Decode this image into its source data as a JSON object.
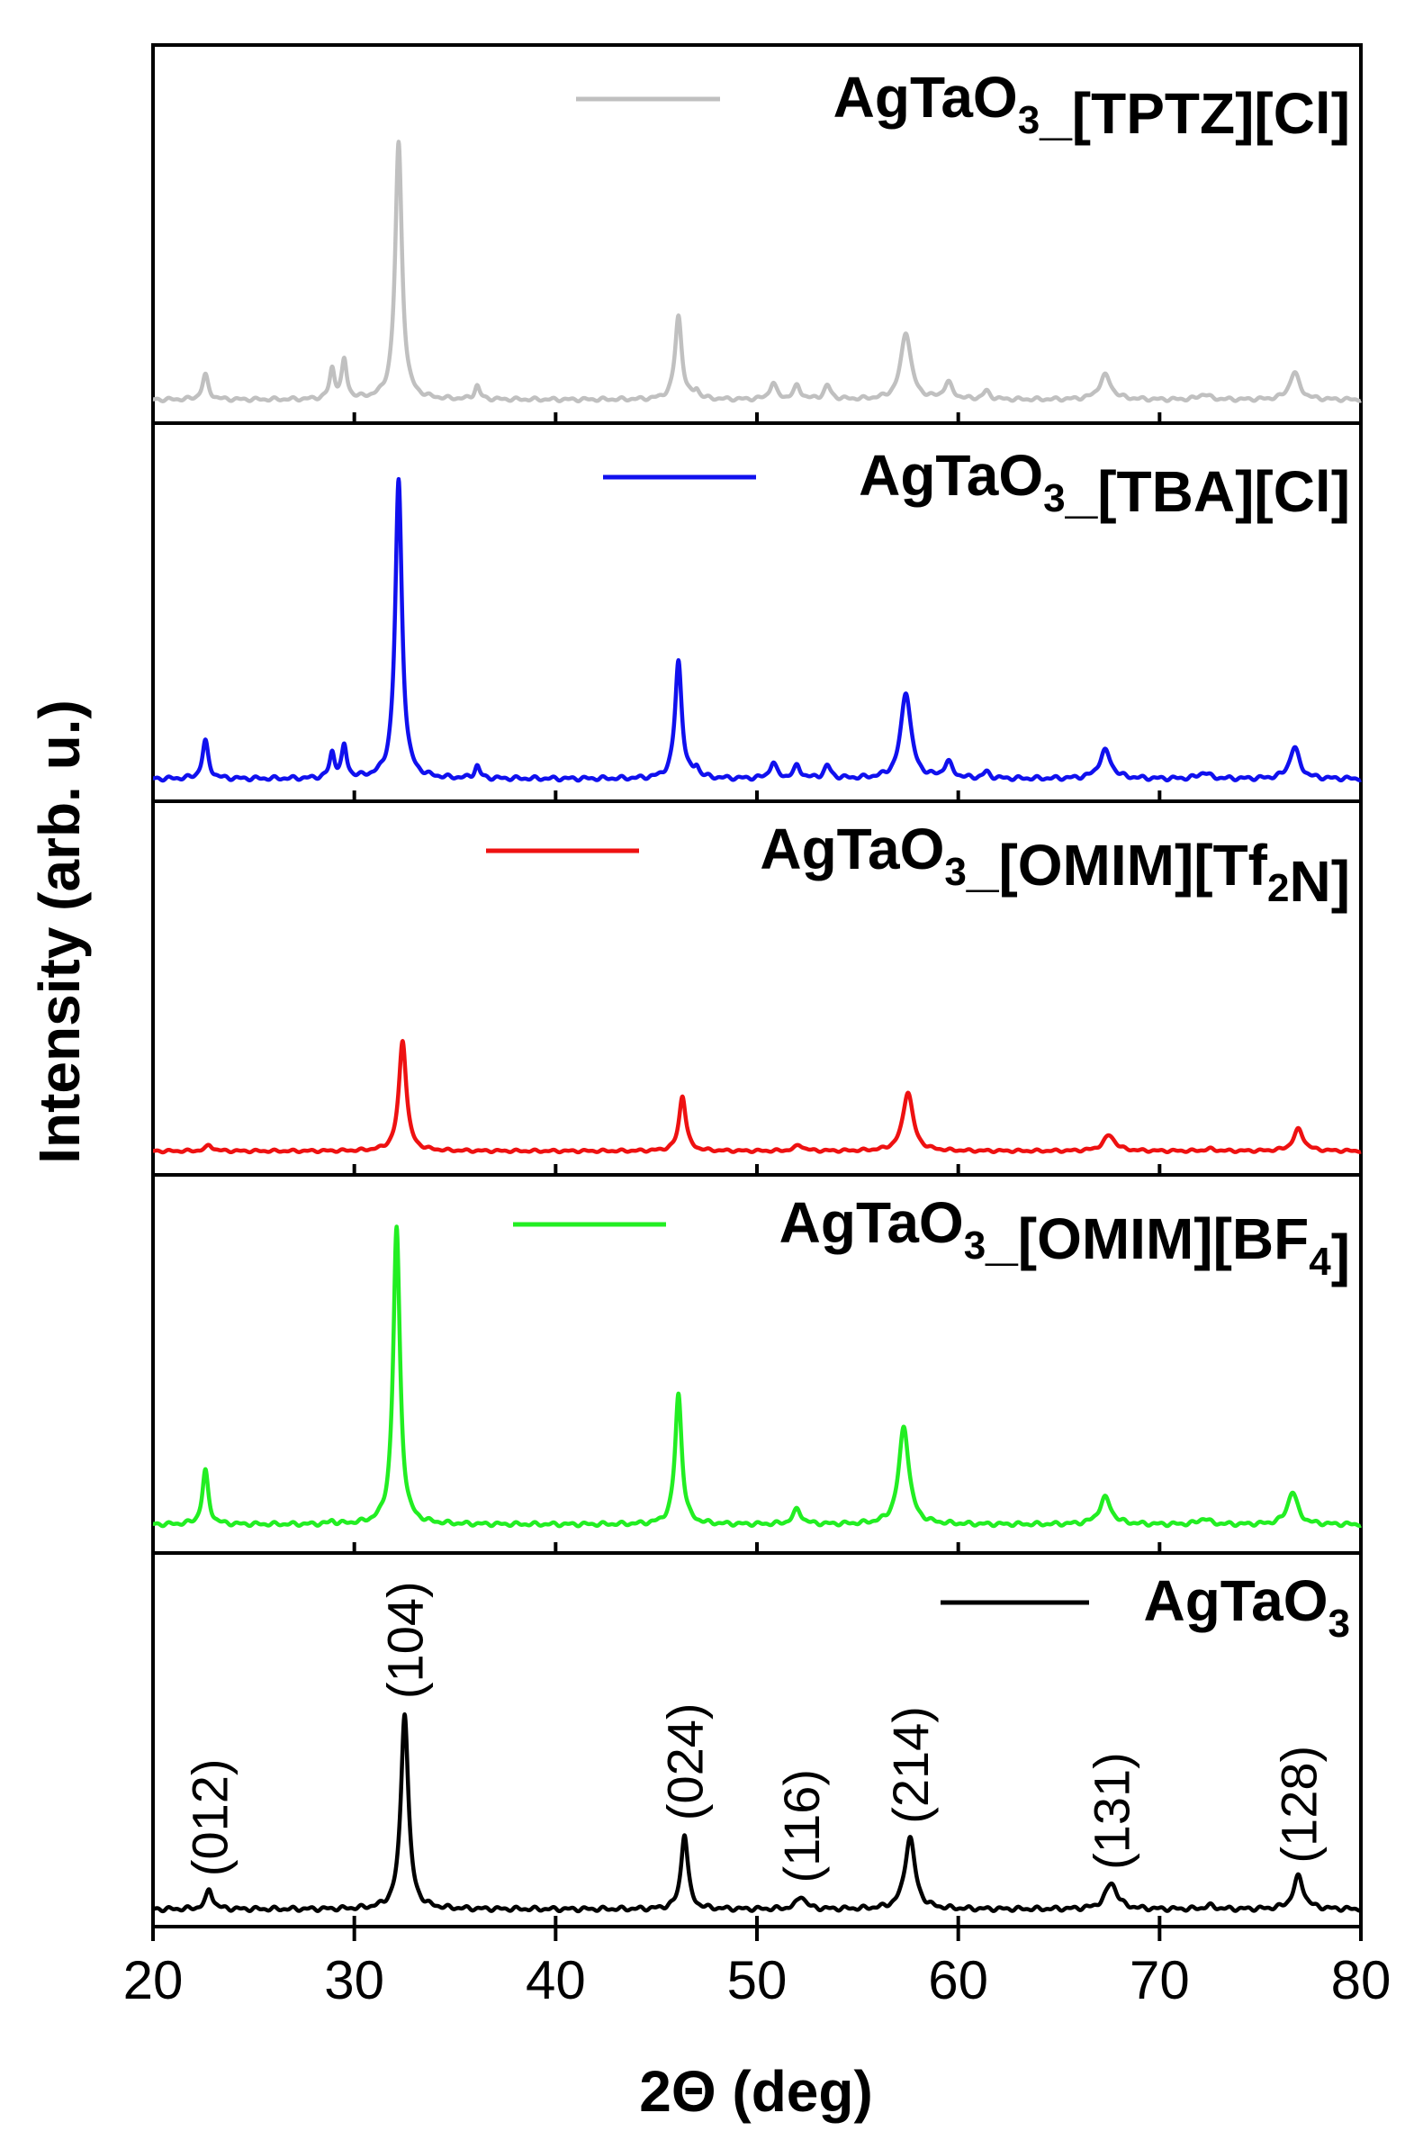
{
  "chart_data": {
    "type": "line",
    "xlabel": "2Θ (deg)",
    "ylabel": "Intensity (arb. u.)",
    "xlim": [
      20,
      80
    ],
    "xticks": [
      20,
      30,
      40,
      50,
      60,
      70,
      80
    ],
    "xtick_labels": [
      "20",
      "30",
      "40",
      "50",
      "60",
      "70",
      "80"
    ],
    "panels": [
      {
        "id": "tptz",
        "legend": {
          "base": "AgTaO",
          "sub1": "3",
          "mid": "_[TPTZ][Cl]",
          "sub2": "",
          "end": ""
        },
        "color": "#c0c0c0",
        "baseline": 0.02,
        "peaks": [
          {
            "x": 22.6,
            "h": 0.09,
            "w": 0.18
          },
          {
            "x": 28.9,
            "h": 0.11,
            "w": 0.15
          },
          {
            "x": 29.5,
            "h": 0.14,
            "w": 0.15
          },
          {
            "x": 32.2,
            "h": 0.95,
            "w": 0.2
          },
          {
            "x": 36.1,
            "h": 0.05,
            "w": 0.15
          },
          {
            "x": 46.1,
            "h": 0.31,
            "w": 0.2
          },
          {
            "x": 47.0,
            "h": 0.03,
            "w": 0.15
          },
          {
            "x": 50.8,
            "h": 0.06,
            "w": 0.2
          },
          {
            "x": 52.0,
            "h": 0.05,
            "w": 0.2
          },
          {
            "x": 53.5,
            "h": 0.05,
            "w": 0.2
          },
          {
            "x": 57.4,
            "h": 0.25,
            "w": 0.3
          },
          {
            "x": 59.5,
            "h": 0.06,
            "w": 0.25
          },
          {
            "x": 61.4,
            "h": 0.03,
            "w": 0.2
          },
          {
            "x": 67.3,
            "h": 0.09,
            "w": 0.35
          },
          {
            "x": 72.2,
            "h": 0.02,
            "w": 0.3
          },
          {
            "x": 76.7,
            "h": 0.1,
            "w": 0.3
          }
        ]
      },
      {
        "id": "tba",
        "legend": {
          "base": "AgTaO",
          "sub1": "3",
          "mid": "_[TBA][Cl]",
          "sub2": "",
          "end": ""
        },
        "color": "#1010ee",
        "baseline": 0.02,
        "peaks": [
          {
            "x": 22.6,
            "h": 0.12,
            "w": 0.18
          },
          {
            "x": 28.9,
            "h": 0.08,
            "w": 0.15
          },
          {
            "x": 29.5,
            "h": 0.1,
            "w": 0.15
          },
          {
            "x": 32.2,
            "h": 0.96,
            "w": 0.2
          },
          {
            "x": 36.1,
            "h": 0.04,
            "w": 0.15
          },
          {
            "x": 46.1,
            "h": 0.38,
            "w": 0.2
          },
          {
            "x": 47.0,
            "h": 0.03,
            "w": 0.15
          },
          {
            "x": 50.8,
            "h": 0.05,
            "w": 0.2
          },
          {
            "x": 52.0,
            "h": 0.04,
            "w": 0.2
          },
          {
            "x": 53.5,
            "h": 0.04,
            "w": 0.2
          },
          {
            "x": 57.4,
            "h": 0.28,
            "w": 0.3
          },
          {
            "x": 59.5,
            "h": 0.05,
            "w": 0.25
          },
          {
            "x": 61.4,
            "h": 0.02,
            "w": 0.2
          },
          {
            "x": 67.3,
            "h": 0.09,
            "w": 0.35
          },
          {
            "x": 72.2,
            "h": 0.02,
            "w": 0.3
          },
          {
            "x": 76.7,
            "h": 0.1,
            "w": 0.3
          }
        ]
      },
      {
        "id": "tf2n",
        "legend": {
          "base": "AgTaO",
          "sub1": "3",
          "mid": "_[OMIM][Tf",
          "sub2": "2",
          "end": "N]"
        },
        "color": "#ee1111",
        "baseline": 0.02,
        "peaks": [
          {
            "x": 22.8,
            "h": 0.03,
            "w": 0.2
          },
          {
            "x": 32.4,
            "h": 0.56,
            "w": 0.22
          },
          {
            "x": 46.3,
            "h": 0.28,
            "w": 0.2
          },
          {
            "x": 52.1,
            "h": 0.03,
            "w": 0.25
          },
          {
            "x": 57.5,
            "h": 0.3,
            "w": 0.3
          },
          {
            "x": 67.5,
            "h": 0.08,
            "w": 0.35
          },
          {
            "x": 72.5,
            "h": 0.01,
            "w": 0.3
          },
          {
            "x": 76.9,
            "h": 0.11,
            "w": 0.3
          }
        ]
      },
      {
        "id": "bf4",
        "legend": {
          "base": "AgTaO",
          "sub1": "3",
          "mid": "_[OMIM][BF",
          "sub2": "4",
          "end": "]"
        },
        "color": "#22ee22",
        "baseline": 0.02,
        "peaks": [
          {
            "x": 22.6,
            "h": 0.18,
            "w": 0.18
          },
          {
            "x": 28.9,
            "h": 0.01,
            "w": 0.15
          },
          {
            "x": 32.1,
            "h": 1.0,
            "w": 0.2
          },
          {
            "x": 46.1,
            "h": 0.44,
            "w": 0.2
          },
          {
            "x": 52.0,
            "h": 0.05,
            "w": 0.25
          },
          {
            "x": 57.3,
            "h": 0.33,
            "w": 0.3
          },
          {
            "x": 67.3,
            "h": 0.09,
            "w": 0.35
          },
          {
            "x": 72.2,
            "h": 0.02,
            "w": 0.3
          },
          {
            "x": 76.6,
            "h": 0.11,
            "w": 0.3
          }
        ]
      },
      {
        "id": "agtao3",
        "legend": {
          "base": "AgTaO",
          "sub1": "3",
          "mid": "",
          "sub2": "",
          "end": ""
        },
        "color": "#000000",
        "baseline": 0.02,
        "peaks": [
          {
            "x": 22.8,
            "h": 0.06,
            "w": 0.2
          },
          {
            "x": 32.5,
            "h": 0.6,
            "w": 0.22
          },
          {
            "x": 46.4,
            "h": 0.23,
            "w": 0.2
          },
          {
            "x": 52.2,
            "h": 0.04,
            "w": 0.25
          },
          {
            "x": 57.6,
            "h": 0.22,
            "w": 0.3
          },
          {
            "x": 67.6,
            "h": 0.08,
            "w": 0.35
          },
          {
            "x": 72.5,
            "h": 0.01,
            "w": 0.3
          },
          {
            "x": 76.9,
            "h": 0.1,
            "w": 0.3
          }
        ],
        "hkl_labels": [
          {
            "text": "(012)",
            "x": 22.8,
            "y": 0.12
          },
          {
            "text": "(104)",
            "x": 32.5,
            "y": 0.66
          },
          {
            "text": "(024)",
            "x": 46.4,
            "y": 0.29
          },
          {
            "text": "(116)",
            "x": 52.2,
            "y": 0.1
          },
          {
            "text": "(214)",
            "x": 57.6,
            "y": 0.28
          },
          {
            "text": "(131)",
            "x": 67.6,
            "y": 0.14
          },
          {
            "text": "(128)",
            "x": 76.9,
            "y": 0.16
          }
        ]
      }
    ]
  }
}
